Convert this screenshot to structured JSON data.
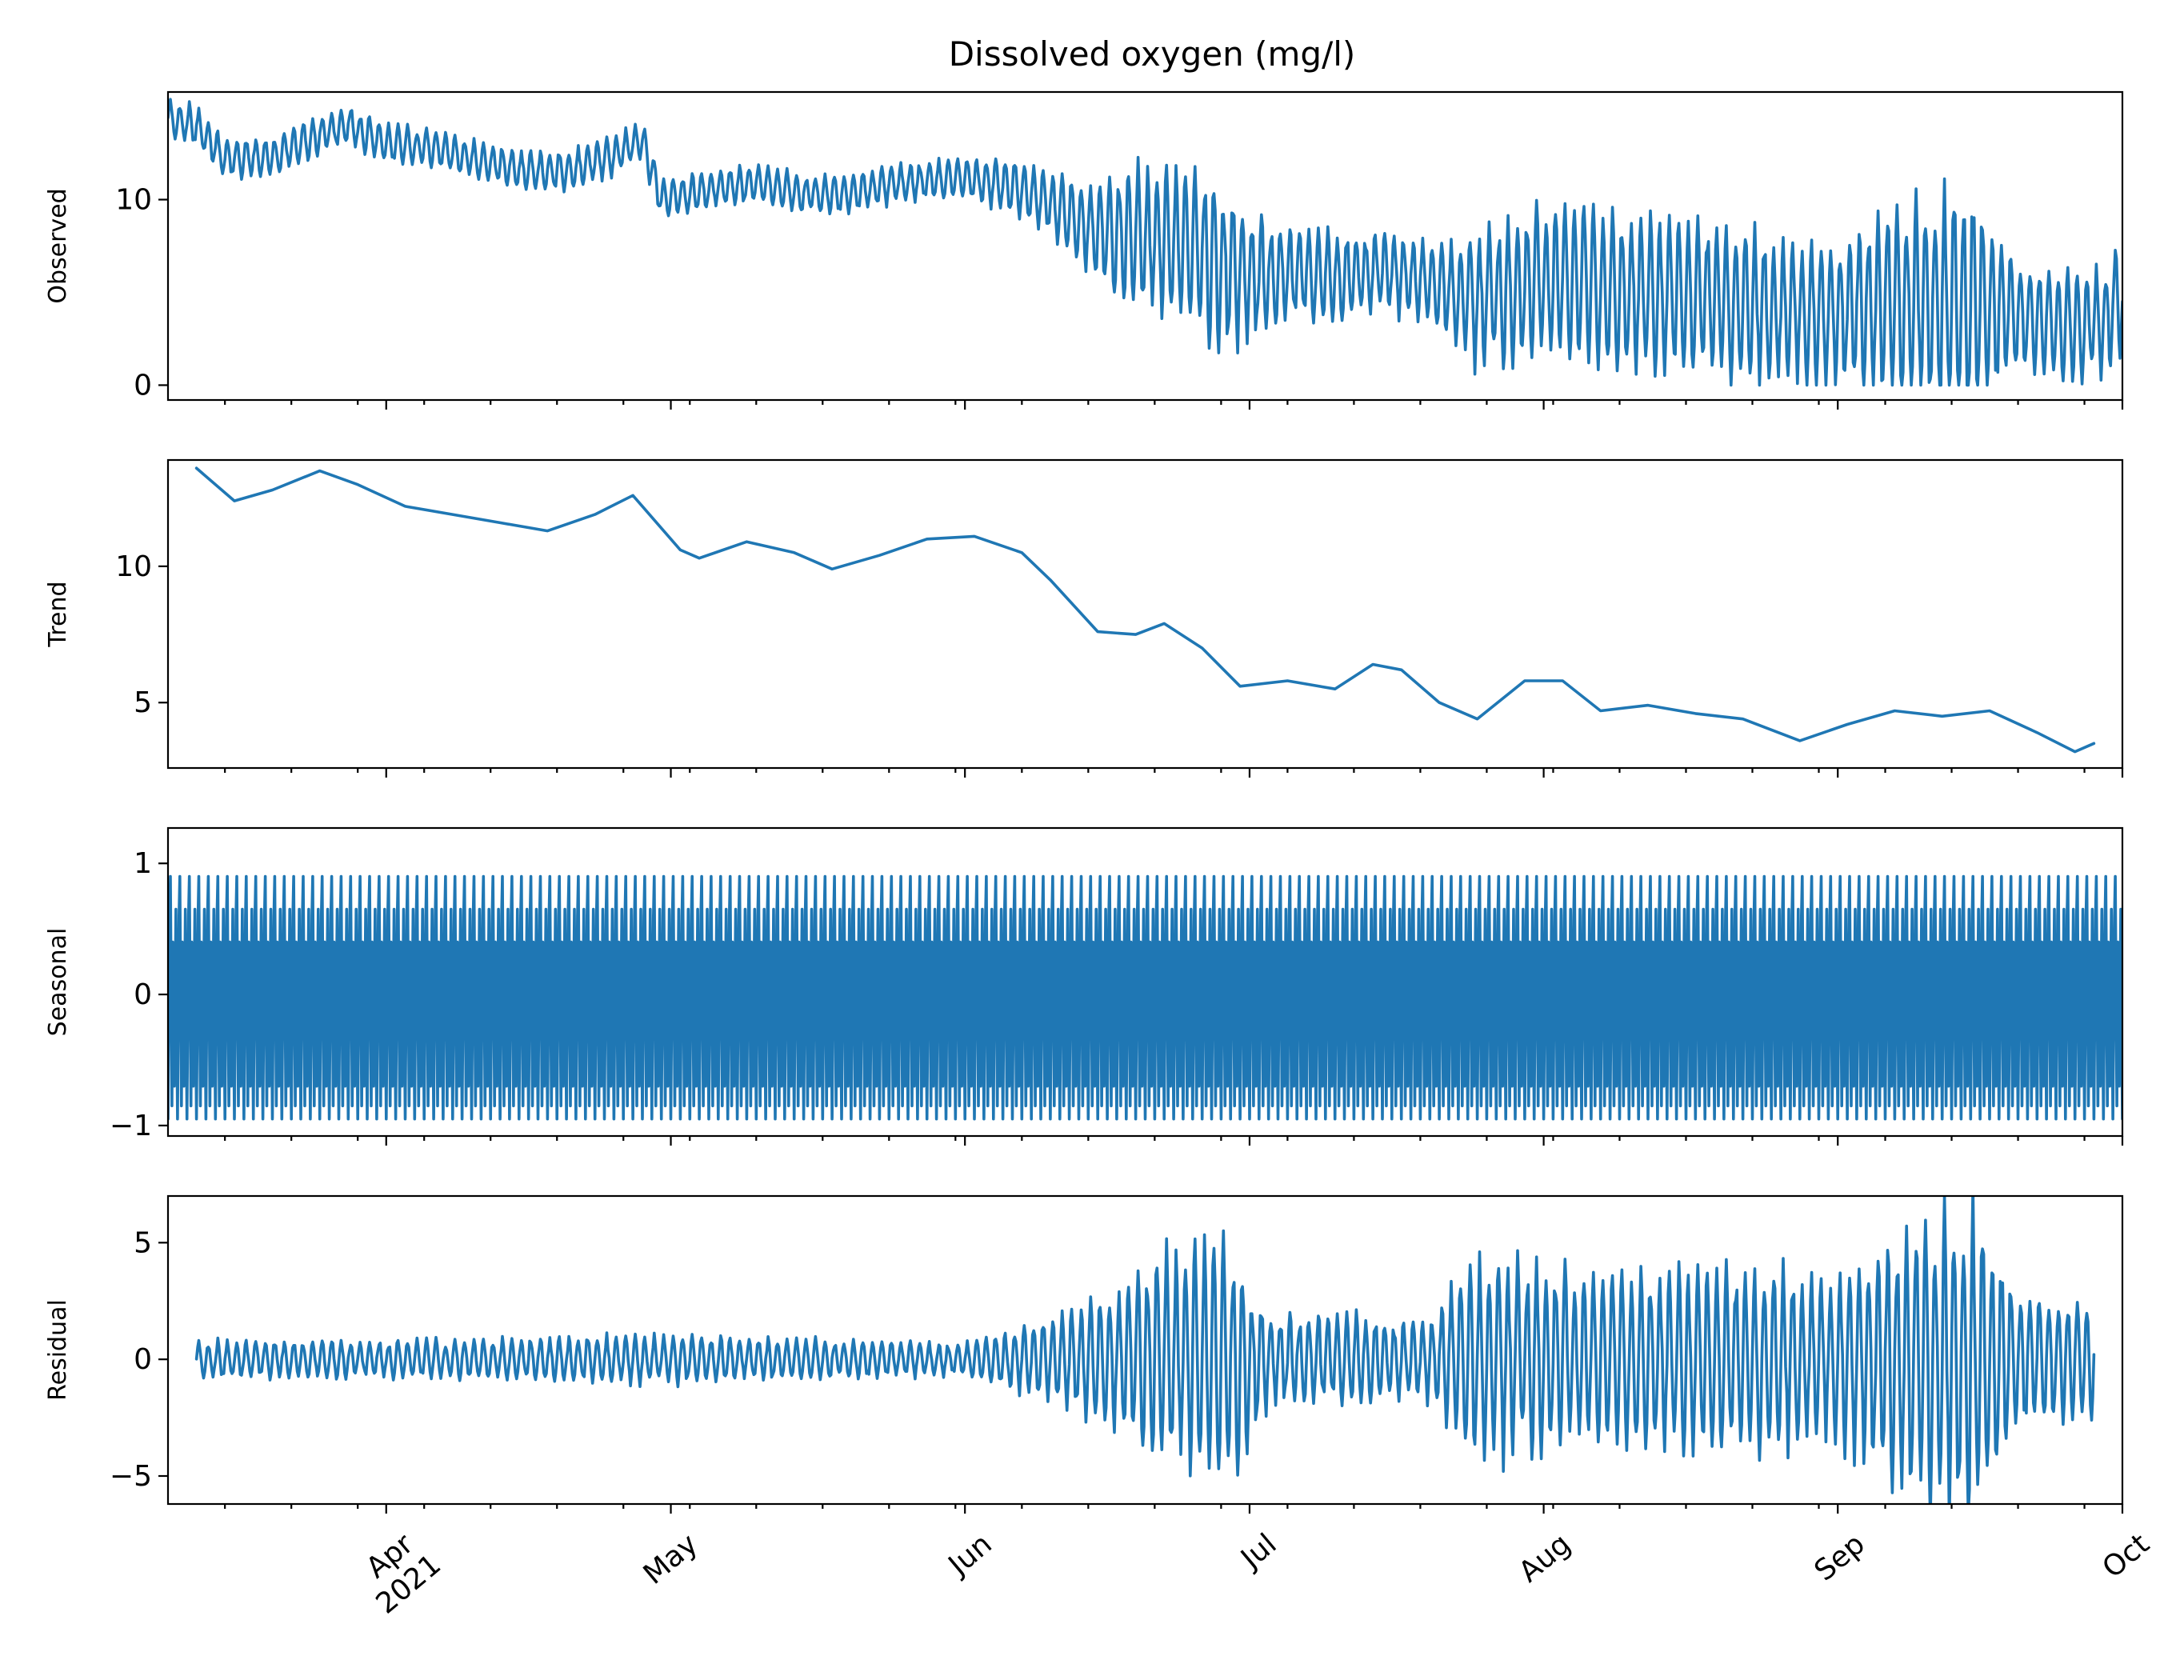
{
  "chart_data": {
    "type": "line",
    "title": "Dissolved oxygen (mg/l)",
    "color": "#1f77b4",
    "x_range": [
      "2021-03-09",
      "2021-10-01"
    ],
    "x_tick_labels": [
      {
        "date": "2021-04-01",
        "label": "Apr",
        "sublabel": "2021"
      },
      {
        "date": "2021-05-01",
        "label": "May"
      },
      {
        "date": "2021-06-01",
        "label": "Jun"
      },
      {
        "date": "2021-07-01",
        "label": "Jul"
      },
      {
        "date": "2021-08-01",
        "label": "Aug"
      },
      {
        "date": "2021-09-01",
        "label": "Sep"
      },
      {
        "date": "2021-10-01",
        "label": "Oct"
      }
    ],
    "x_label_rotation_deg": 40,
    "panels": [
      {
        "name": "observed",
        "ylabel": "Observed",
        "ylim": [
          -0.8,
          15.8
        ],
        "yticks": [
          {
            "value": 0,
            "label": "0"
          },
          {
            "value": 10,
            "label": "10"
          }
        ],
        "kind": "daily-oscillation",
        "baseline": [
          [
            "2021-03-09",
            14.4
          ],
          [
            "2021-03-12",
            14.0
          ],
          [
            "2021-03-15",
            12.2
          ],
          [
            "2021-03-20",
            12.3
          ],
          [
            "2021-03-25",
            13.5
          ],
          [
            "2021-03-28",
            14.0
          ],
          [
            "2021-04-01",
            13.0
          ],
          [
            "2021-04-06",
            12.8
          ],
          [
            "2021-04-10",
            12.2
          ],
          [
            "2021-04-15",
            11.6
          ],
          [
            "2021-04-20",
            11.5
          ],
          [
            "2021-04-25",
            12.4
          ],
          [
            "2021-04-28",
            13.2
          ],
          [
            "2021-04-30",
            10.0
          ],
          [
            "2021-05-05",
            10.5
          ],
          [
            "2021-05-10",
            10.9
          ],
          [
            "2021-05-15",
            10.3
          ],
          [
            "2021-05-20",
            10.3
          ],
          [
            "2021-05-25",
            10.9
          ],
          [
            "2021-06-01",
            11.2
          ],
          [
            "2021-06-06",
            10.7
          ],
          [
            "2021-06-10",
            9.8
          ],
          [
            "2021-06-15",
            8.2
          ],
          [
            "2021-06-20",
            7.8
          ],
          [
            "2021-06-25",
            7.5
          ],
          [
            "2021-07-01",
            5.8
          ],
          [
            "2021-07-05",
            6.0
          ],
          [
            "2021-07-10",
            5.8
          ],
          [
            "2021-07-15",
            6.2
          ],
          [
            "2021-07-20",
            5.5
          ],
          [
            "2021-07-25",
            4.5
          ],
          [
            "2021-08-01",
            5.5
          ],
          [
            "2021-08-05",
            5.5
          ],
          [
            "2021-08-10",
            4.9
          ],
          [
            "2021-08-15",
            4.9
          ],
          [
            "2021-08-20",
            4.6
          ],
          [
            "2021-08-25",
            4.0
          ],
          [
            "2021-09-01",
            3.8
          ],
          [
            "2021-09-05",
            4.5
          ],
          [
            "2021-09-10",
            4.5
          ],
          [
            "2021-09-15",
            4.5
          ],
          [
            "2021-09-20",
            3.8
          ],
          [
            "2021-09-25",
            3.2
          ],
          [
            "2021-09-29",
            3.4
          ],
          [
            "2021-10-01",
            4.8
          ]
        ],
        "amplitude": [
          [
            "2021-03-09",
            0.9
          ],
          [
            "2021-04-01",
            0.9
          ],
          [
            "2021-05-01",
            0.9
          ],
          [
            "2021-06-01",
            0.9
          ],
          [
            "2021-06-10",
            1.5
          ],
          [
            "2021-06-20",
            3.5
          ],
          [
            "2021-06-28",
            4.0
          ],
          [
            "2021-07-05",
            2.2
          ],
          [
            "2021-07-20",
            1.8
          ],
          [
            "2021-07-25",
            3.2
          ],
          [
            "2021-08-05",
            3.8
          ],
          [
            "2021-08-20",
            3.5
          ],
          [
            "2021-09-01",
            3.2
          ],
          [
            "2021-09-06",
            4.5
          ],
          [
            "2021-09-15",
            5.2
          ],
          [
            "2021-09-20",
            2.5
          ],
          [
            "2021-10-01",
            2.6
          ]
        ],
        "min_value": 0.0
      },
      {
        "name": "trend",
        "ylabel": "Trend",
        "ylim": [
          2.6,
          13.9
        ],
        "yticks": [
          {
            "value": 5,
            "label": "5"
          },
          {
            "value": 10,
            "label": "10"
          }
        ],
        "kind": "points",
        "points": [
          [
            "2021-03-12",
            13.6
          ],
          [
            "2021-03-16",
            12.4
          ],
          [
            "2021-03-20",
            12.8
          ],
          [
            "2021-03-25",
            13.5
          ],
          [
            "2021-03-29",
            13.0
          ],
          [
            "2021-04-03",
            12.2
          ],
          [
            "2021-04-08",
            11.9
          ],
          [
            "2021-04-13",
            11.6
          ],
          [
            "2021-04-18",
            11.3
          ],
          [
            "2021-04-23",
            11.9
          ],
          [
            "2021-04-27",
            12.6
          ],
          [
            "2021-05-02",
            10.6
          ],
          [
            "2021-05-04",
            10.3
          ],
          [
            "2021-05-09",
            10.9
          ],
          [
            "2021-05-14",
            10.5
          ],
          [
            "2021-05-18",
            9.9
          ],
          [
            "2021-05-23",
            10.4
          ],
          [
            "2021-05-28",
            11.0
          ],
          [
            "2021-06-02",
            11.1
          ],
          [
            "2021-06-07",
            10.5
          ],
          [
            "2021-06-10",
            9.5
          ],
          [
            "2021-06-15",
            7.6
          ],
          [
            "2021-06-19",
            7.5
          ],
          [
            "2021-06-22",
            7.9
          ],
          [
            "2021-06-26",
            7.0
          ],
          [
            "2021-06-30",
            5.6
          ],
          [
            "2021-07-05",
            5.8
          ],
          [
            "2021-07-10",
            5.5
          ],
          [
            "2021-07-14",
            6.4
          ],
          [
            "2021-07-17",
            6.2
          ],
          [
            "2021-07-21",
            5.0
          ],
          [
            "2021-07-25",
            4.4
          ],
          [
            "2021-07-30",
            5.8
          ],
          [
            "2021-08-03",
            5.8
          ],
          [
            "2021-08-07",
            4.7
          ],
          [
            "2021-08-12",
            4.9
          ],
          [
            "2021-08-17",
            4.6
          ],
          [
            "2021-08-22",
            4.4
          ],
          [
            "2021-08-28",
            3.6
          ],
          [
            "2021-09-02",
            4.2
          ],
          [
            "2021-09-07",
            4.7
          ],
          [
            "2021-09-12",
            4.5
          ],
          [
            "2021-09-17",
            4.7
          ],
          [
            "2021-09-22",
            3.9
          ],
          [
            "2021-09-26",
            3.2
          ],
          [
            "2021-09-28",
            3.5
          ]
        ]
      },
      {
        "name": "seasonal",
        "ylabel": "Seasonal",
        "ylim": [
          -1.08,
          1.27
        ],
        "yticks": [
          {
            "value": -1,
            "label": "−1"
          },
          {
            "value": 0,
            "label": "0"
          },
          {
            "value": 1,
            "label": "1"
          }
        ],
        "kind": "periodic",
        "period_days": 1,
        "max": 1.2,
        "min": -0.95
      },
      {
        "name": "residual",
        "ylabel": "Residual",
        "ylim": [
          -6.2,
          7.0
        ],
        "yticks": [
          {
            "value": -5,
            "label": "−5"
          },
          {
            "value": 0,
            "label": "0"
          },
          {
            "value": 5,
            "label": "5"
          }
        ],
        "kind": "daily-oscillation",
        "x_start": "2021-03-12",
        "x_end": "2021-09-28",
        "baseline": [
          [
            "2021-03-12",
            0.0
          ],
          [
            "2021-04-01",
            0.0
          ],
          [
            "2021-05-01",
            0.0
          ],
          [
            "2021-06-01",
            0.0
          ],
          [
            "2021-07-01",
            0.0
          ],
          [
            "2021-08-01",
            0.0
          ],
          [
            "2021-09-01",
            0.0
          ],
          [
            "2021-09-28",
            0.0
          ]
        ],
        "amplitude": [
          [
            "2021-03-12",
            0.7
          ],
          [
            "2021-04-01",
            0.7
          ],
          [
            "2021-05-01",
            0.9
          ],
          [
            "2021-06-01",
            0.6
          ],
          [
            "2021-06-10",
            1.5
          ],
          [
            "2021-06-20",
            3.5
          ],
          [
            "2021-06-28",
            5.0
          ],
          [
            "2021-07-03",
            1.8
          ],
          [
            "2021-07-20",
            1.5
          ],
          [
            "2021-07-25",
            4.0
          ],
          [
            "2021-08-05",
            3.2
          ],
          [
            "2021-08-20",
            3.5
          ],
          [
            "2021-09-01",
            3.0
          ],
          [
            "2021-09-08",
            5.0
          ],
          [
            "2021-09-15",
            5.8
          ],
          [
            "2021-09-20",
            2.5
          ],
          [
            "2021-09-28",
            2.2
          ]
        ]
      }
    ]
  }
}
